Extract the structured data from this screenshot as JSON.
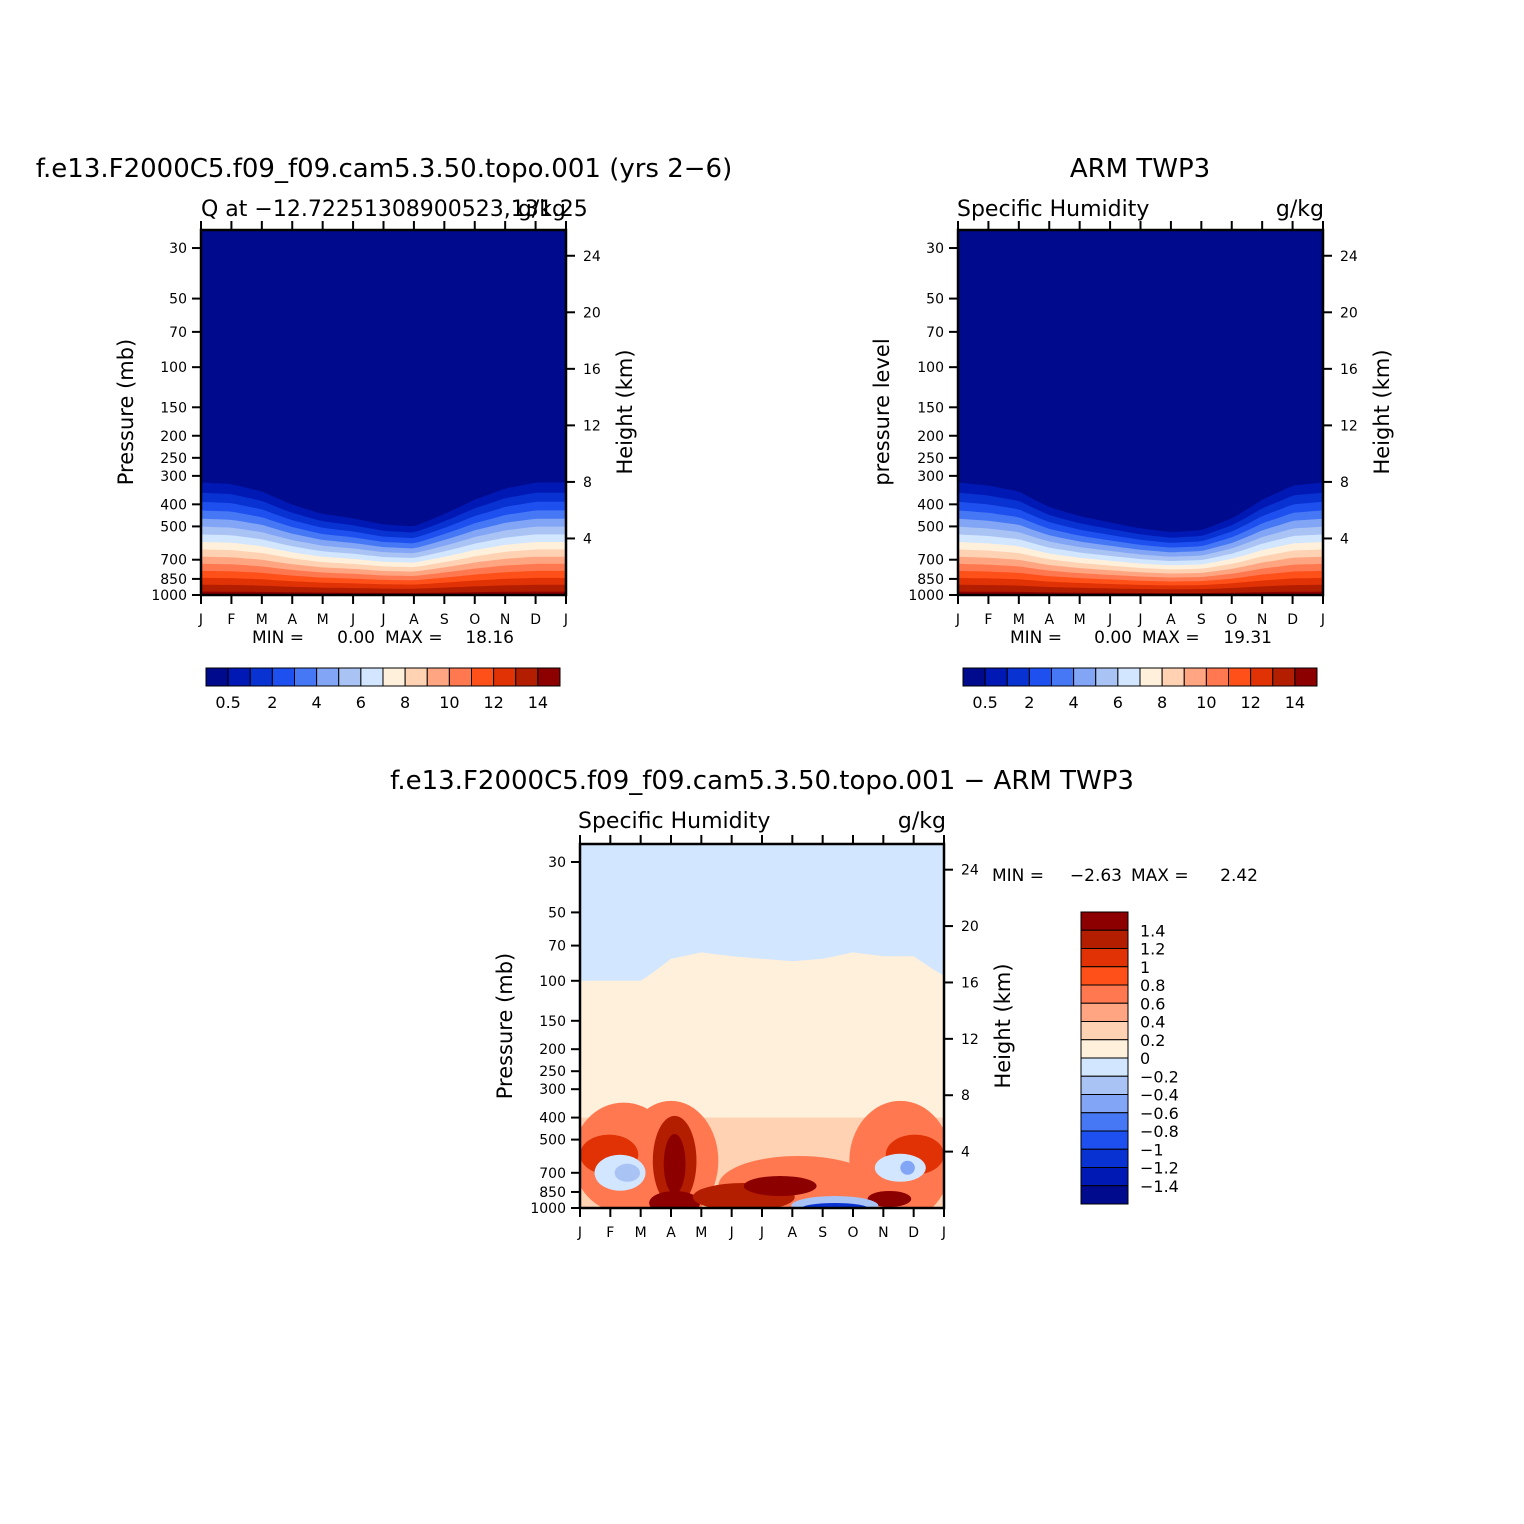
{
  "chart_data": [
    {
      "type": "heatmap",
      "id": "panel-model",
      "title": "f.e13.F2000C5.f09_f09.cam5.3.50.topo.001 (yrs 2−6)",
      "subtitle_left": "Q at −12.72251308900523,131.25",
      "subtitle_right": "g/kg",
      "ylabel_left": "Pressure (mb)",
      "ylabel_right": "Height (km)",
      "x_ticks": [
        "J",
        "F",
        "M",
        "A",
        "M",
        "J",
        "J",
        "A",
        "S",
        "O",
        "N",
        "D",
        "J"
      ],
      "pressure_ticks": [
        30,
        50,
        70,
        100,
        150,
        200,
        250,
        300,
        400,
        500,
        700,
        850,
        1000
      ],
      "height_ticks": [
        24,
        20,
        16,
        12,
        8,
        4
      ],
      "min_label": "MIN =",
      "min_value": "0.00",
      "max_label": "MAX =",
      "max_value": "18.16",
      "colorbar": {
        "orientation": "horizontal",
        "labels": [
          "0.5",
          "2",
          "4",
          "6",
          "8",
          "10",
          "12",
          "14"
        ],
        "colors": [
          "#000a8c",
          "#0019b4",
          "#0832d2",
          "#1e50f0",
          "#4678f5",
          "#82a5f5",
          "#aac3f5",
          "#d2e6ff",
          "#fff0dc",
          "#ffd2b4",
          "#ffa582",
          "#ff7850",
          "#ff5019",
          "#e13205",
          "#b41e00",
          "#8c0000"
        ]
      },
      "field_profile_top_hpa": [
        300,
        305,
        330,
        380,
        420,
        440,
        470,
        480,
        420,
        360,
        320,
        300,
        300
      ]
    },
    {
      "type": "heatmap",
      "id": "panel-obs",
      "title": "ARM TWP3",
      "subtitle_left": "Specific Humidity",
      "subtitle_right": "g/kg",
      "ylabel_left": "pressure level",
      "ylabel_right": "Height (km)",
      "x_ticks": [
        "J",
        "F",
        "M",
        "A",
        "M",
        "J",
        "J",
        "A",
        "S",
        "O",
        "N",
        "D",
        "J"
      ],
      "pressure_ticks": [
        30,
        50,
        70,
        100,
        150,
        200,
        250,
        300,
        400,
        500,
        700,
        850,
        1000
      ],
      "height_ticks": [
        24,
        20,
        16,
        12,
        8,
        4
      ],
      "min_label": "MIN =",
      "min_value": "0.00",
      "max_label": "MAX =",
      "max_value": "19.31",
      "colorbar": {
        "orientation": "horizontal",
        "labels": [
          "0.5",
          "2",
          "4",
          "6",
          "8",
          "10",
          "12",
          "14"
        ],
        "colors": [
          "#000a8c",
          "#0019b4",
          "#0832d2",
          "#1e50f0",
          "#4678f5",
          "#82a5f5",
          "#aac3f5",
          "#d2e6ff",
          "#fff0dc",
          "#ffd2b4",
          "#ffa582",
          "#ff7850",
          "#ff5019",
          "#e13205",
          "#b41e00",
          "#8c0000"
        ]
      },
      "field_profile_top_hpa": [
        300,
        310,
        330,
        390,
        430,
        460,
        490,
        510,
        500,
        440,
        360,
        310,
        300
      ]
    },
    {
      "type": "heatmap",
      "id": "panel-diff",
      "title": "f.e13.F2000C5.f09_f09.cam5.3.50.topo.001 − ARM TWP3",
      "subtitle_left": "Specific Humidity",
      "subtitle_right": "g/kg",
      "ylabel_left": "Pressure (mb)",
      "ylabel_right": "Height (km)",
      "x_ticks": [
        "J",
        "F",
        "M",
        "A",
        "M",
        "J",
        "J",
        "A",
        "S",
        "O",
        "N",
        "D",
        "J"
      ],
      "pressure_ticks": [
        30,
        50,
        70,
        100,
        150,
        200,
        250,
        300,
        400,
        500,
        700,
        850,
        1000
      ],
      "height_ticks": [
        24,
        20,
        16,
        12,
        8,
        4
      ],
      "min_label": "MIN =",
      "min_value": "−2.63",
      "max_label": "MAX =",
      "max_value": "2.42",
      "colorbar": {
        "orientation": "vertical",
        "labels": [
          "1.4",
          "1.2",
          "1",
          "0.8",
          "0.6",
          "0.4",
          "0.2",
          "0",
          "−0.2",
          "−0.4",
          "−0.6",
          "−0.8",
          "−1",
          "−1.2",
          "−1.4"
        ],
        "colors": [
          "#8c0000",
          "#b41e00",
          "#e13205",
          "#ff5019",
          "#ff7850",
          "#ffa582",
          "#ffd2b4",
          "#fff0dc",
          "#d2e6ff",
          "#aac3f5",
          "#82a5f5",
          "#4678f5",
          "#1e50f0",
          "#0832d2",
          "#0019b4",
          "#000a8c"
        ]
      },
      "zero_boundary_hpa": [
        100,
        100,
        100,
        80,
        75,
        78,
        80,
        82,
        80,
        75,
        78,
        78,
        95
      ]
    }
  ]
}
